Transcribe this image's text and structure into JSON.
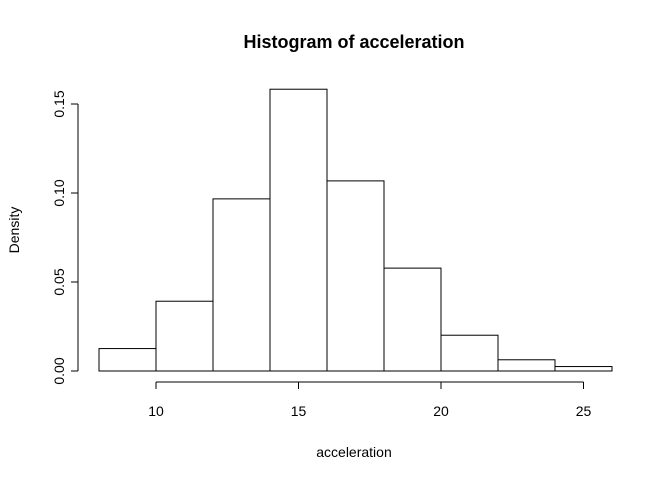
{
  "chart_data": {
    "type": "bar",
    "title": "Histogram of acceleration",
    "xlabel": "acceleration",
    "ylabel": "Density",
    "bins": [
      {
        "start": 8,
        "end": 10,
        "density": 0.0126
      },
      {
        "start": 10,
        "end": 12,
        "density": 0.0392
      },
      {
        "start": 12,
        "end": 14,
        "density": 0.0967
      },
      {
        "start": 14,
        "end": 16,
        "density": 0.1583
      },
      {
        "start": 16,
        "end": 18,
        "density": 0.1068
      },
      {
        "start": 18,
        "end": 20,
        "density": 0.0578
      },
      {
        "start": 20,
        "end": 22,
        "density": 0.0201
      },
      {
        "start": 22,
        "end": 24,
        "density": 0.0063
      },
      {
        "start": 24,
        "end": 26,
        "density": 0.0025
      }
    ],
    "xlim": [
      8,
      26
    ],
    "ylim": [
      0,
      0.16
    ],
    "xticks": [
      10,
      15,
      20,
      25
    ],
    "xtick_labels": [
      "10",
      "15",
      "20",
      "25"
    ],
    "yticks": [
      0,
      0.05,
      0.1,
      0.15
    ],
    "ytick_labels": [
      "0.00",
      "0.05",
      "0.10",
      "0.15"
    ],
    "grid": false,
    "legend": "none"
  }
}
